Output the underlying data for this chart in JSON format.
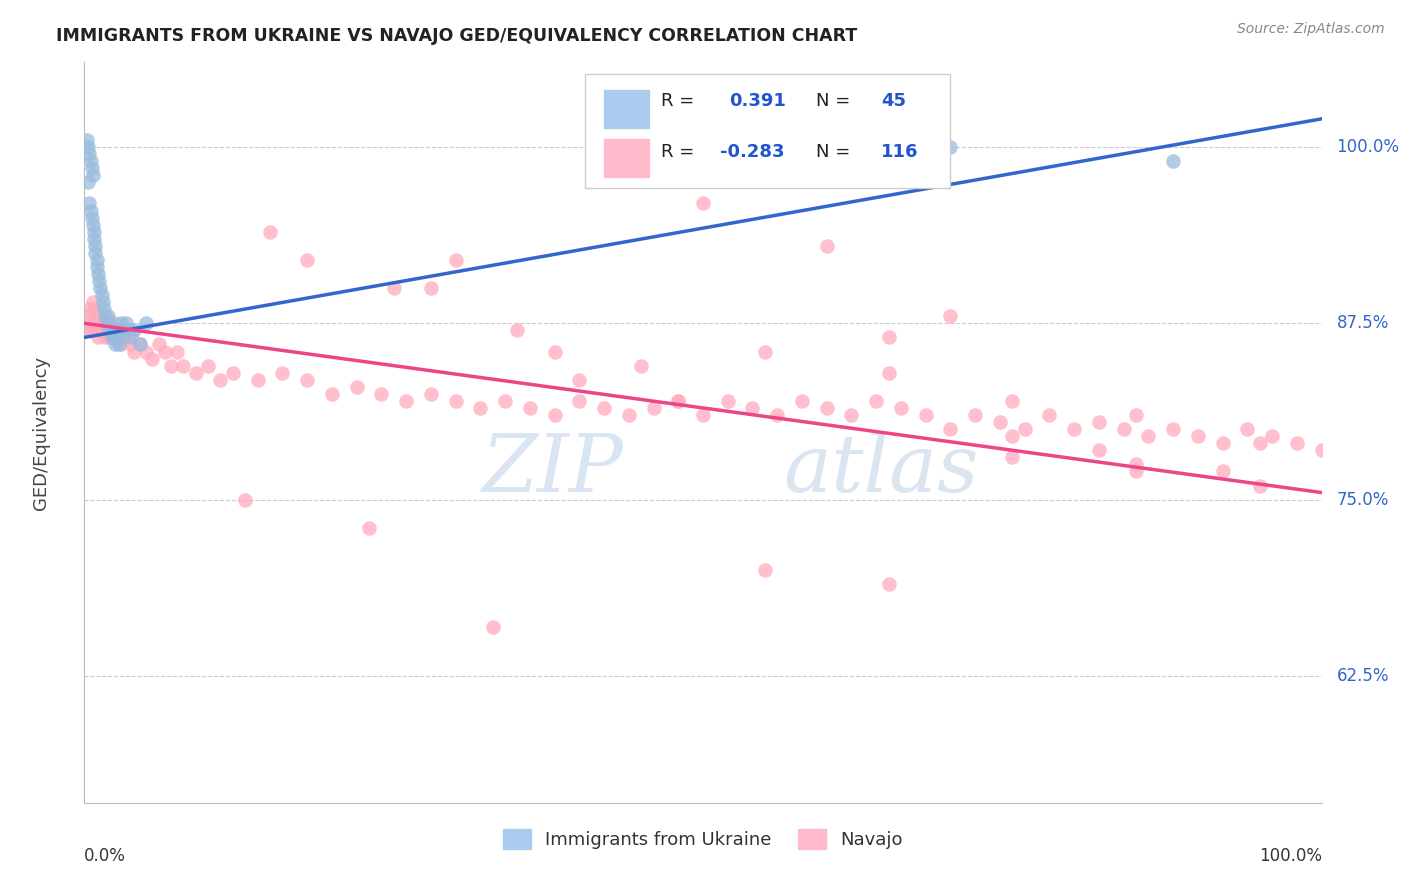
{
  "title": "IMMIGRANTS FROM UKRAINE VS NAVAJO GED/EQUIVALENCY CORRELATION CHART",
  "source": "Source: ZipAtlas.com",
  "ylabel": "GED/Equivalency",
  "ytick_labels": [
    "62.5%",
    "75.0%",
    "87.5%",
    "100.0%"
  ],
  "ytick_values": [
    0.625,
    0.75,
    0.875,
    1.0
  ],
  "xmin": 0.0,
  "xmax": 1.0,
  "ymin": 0.535,
  "ymax": 1.06,
  "blue_r": "0.391",
  "blue_n": "45",
  "pink_r": "-0.283",
  "pink_n": "116",
  "blue_dot_color": "#99BBDD",
  "pink_dot_color": "#FFAABB",
  "blue_line_color": "#3366CC",
  "pink_line_color": "#EE4488",
  "background_color": "#FFFFFF",
  "grid_color": "#CCCCCC",
  "title_color": "#222222",
  "axis_label_color": "#444444",
  "right_tick_color": "#3366CC",
  "source_color": "#888888",
  "blue_line_x0": 0.0,
  "blue_line_y0": 0.865,
  "blue_line_x1": 1.0,
  "blue_line_y1": 1.02,
  "pink_line_x0": 0.0,
  "pink_line_y0": 0.875,
  "pink_line_x1": 1.0,
  "pink_line_y1": 0.755,
  "blue_x": [
    0.002,
    0.003,
    0.003,
    0.004,
    0.004,
    0.005,
    0.005,
    0.006,
    0.006,
    0.007,
    0.007,
    0.008,
    0.008,
    0.009,
    0.009,
    0.01,
    0.01,
    0.011,
    0.012,
    0.013,
    0.014,
    0.015,
    0.016,
    0.017,
    0.018,
    0.019,
    0.02,
    0.021,
    0.022,
    0.023,
    0.024,
    0.025,
    0.026,
    0.027,
    0.028,
    0.03,
    0.032,
    0.034,
    0.036,
    0.038,
    0.04,
    0.045,
    0.05,
    0.7,
    0.88
  ],
  "blue_y": [
    1.005,
    1.0,
    0.975,
    0.995,
    0.96,
    0.99,
    0.955,
    0.985,
    0.95,
    0.98,
    0.945,
    0.94,
    0.935,
    0.93,
    0.925,
    0.92,
    0.915,
    0.91,
    0.905,
    0.9,
    0.895,
    0.89,
    0.885,
    0.88,
    0.875,
    0.88,
    0.875,
    0.87,
    0.865,
    0.87,
    0.865,
    0.86,
    0.87,
    0.865,
    0.86,
    0.875,
    0.87,
    0.875,
    0.87,
    0.865,
    0.87,
    0.86,
    0.875,
    1.0,
    0.99
  ],
  "pink_x": [
    0.002,
    0.003,
    0.004,
    0.005,
    0.006,
    0.007,
    0.008,
    0.009,
    0.01,
    0.011,
    0.012,
    0.013,
    0.014,
    0.015,
    0.016,
    0.017,
    0.018,
    0.019,
    0.02,
    0.022,
    0.024,
    0.026,
    0.028,
    0.03,
    0.032,
    0.035,
    0.038,
    0.04,
    0.045,
    0.05,
    0.055,
    0.06,
    0.065,
    0.07,
    0.075,
    0.08,
    0.09,
    0.1,
    0.11,
    0.12,
    0.14,
    0.16,
    0.18,
    0.2,
    0.22,
    0.24,
    0.26,
    0.28,
    0.3,
    0.32,
    0.34,
    0.36,
    0.38,
    0.4,
    0.42,
    0.44,
    0.46,
    0.48,
    0.5,
    0.52,
    0.54,
    0.56,
    0.58,
    0.6,
    0.62,
    0.64,
    0.66,
    0.68,
    0.7,
    0.72,
    0.74,
    0.76,
    0.78,
    0.8,
    0.82,
    0.84,
    0.86,
    0.88,
    0.9,
    0.92,
    0.94,
    0.96,
    0.98,
    1.0,
    0.5,
    0.6,
    0.7,
    0.3,
    0.4,
    0.65,
    0.75,
    0.85,
    0.95,
    0.18,
    0.28,
    0.38,
    0.48,
    0.15,
    0.25,
    0.35,
    0.45,
    0.55,
    0.65,
    0.75,
    0.85,
    0.95,
    0.82,
    0.92,
    0.75,
    0.85,
    0.55,
    0.65,
    0.13,
    0.23,
    0.33
  ],
  "pink_y": [
    0.87,
    0.88,
    0.885,
    0.875,
    0.87,
    0.89,
    0.885,
    0.875,
    0.87,
    0.865,
    0.88,
    0.875,
    0.87,
    0.875,
    0.87,
    0.865,
    0.875,
    0.87,
    0.865,
    0.87,
    0.875,
    0.865,
    0.87,
    0.86,
    0.865,
    0.87,
    0.86,
    0.855,
    0.86,
    0.855,
    0.85,
    0.86,
    0.855,
    0.845,
    0.855,
    0.845,
    0.84,
    0.845,
    0.835,
    0.84,
    0.835,
    0.84,
    0.835,
    0.825,
    0.83,
    0.825,
    0.82,
    0.825,
    0.82,
    0.815,
    0.82,
    0.815,
    0.81,
    0.82,
    0.815,
    0.81,
    0.815,
    0.82,
    0.81,
    0.82,
    0.815,
    0.81,
    0.82,
    0.815,
    0.81,
    0.82,
    0.815,
    0.81,
    0.8,
    0.81,
    0.805,
    0.8,
    0.81,
    0.8,
    0.805,
    0.8,
    0.795,
    0.8,
    0.795,
    0.79,
    0.8,
    0.795,
    0.79,
    0.785,
    0.96,
    0.93,
    0.88,
    0.92,
    0.835,
    0.865,
    0.82,
    0.81,
    0.79,
    0.92,
    0.9,
    0.855,
    0.82,
    0.94,
    0.9,
    0.87,
    0.845,
    0.855,
    0.84,
    0.795,
    0.775,
    0.76,
    0.785,
    0.77,
    0.78,
    0.77,
    0.7,
    0.69,
    0.75,
    0.73,
    0.66
  ]
}
